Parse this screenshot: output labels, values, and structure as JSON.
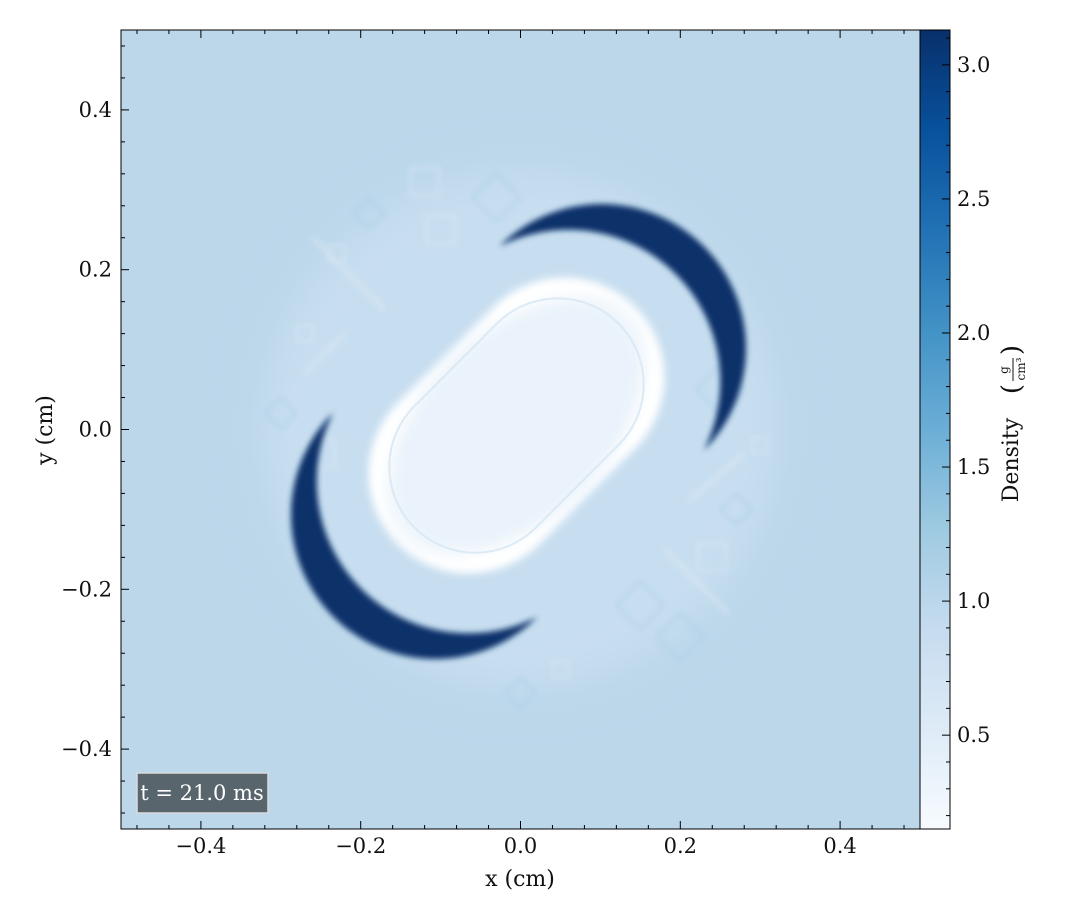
{
  "chart_data": {
    "type": "heatmap",
    "title": "",
    "xlabel": "x  (cm)",
    "ylabel": "y  (cm)",
    "xlim": [
      -0.5,
      0.5
    ],
    "ylim": [
      -0.5,
      0.5
    ],
    "x_ticks": [
      -0.4,
      -0.2,
      0.0,
      0.2,
      0.4
    ],
    "x_tick_labels": [
      "−0.4",
      "−0.2",
      "0.0",
      "0.2",
      "0.4"
    ],
    "y_ticks": [
      0.4,
      0.2,
      0.0,
      -0.2,
      -0.4
    ],
    "y_tick_labels": [
      "0.4",
      "0.2",
      "0.0",
      "−0.2",
      "−0.4"
    ],
    "colorbar": {
      "label": "Density",
      "unit_numerator": "g",
      "unit_denominator": "cm³",
      "range": [
        0.15,
        3.13
      ],
      "ticks": [
        0.5,
        1.0,
        1.5,
        2.0,
        2.5,
        3.0
      ],
      "tick_labels": [
        "0.5",
        "1.0",
        "1.5",
        "2.0",
        "2.5",
        "3.0"
      ],
      "colormap": "Blues"
    },
    "background_density": 1.2,
    "annotation": "t = 21.0 ms",
    "features": [
      {
        "name": "low-density core",
        "shape": "rotated rounded rectangle",
        "center": [
          -0.005,
          0.005
        ],
        "half_extents": [
          0.21,
          0.125
        ],
        "angle_deg": 45,
        "density": 0.2
      },
      {
        "name": "dense shell upper-right",
        "shape": "crescent",
        "center": [
          0.06,
          0.06
        ],
        "radius": 0.19,
        "density_peak": 3.1
      },
      {
        "name": "dense shell lower-left",
        "shape": "crescent",
        "center": [
          -0.065,
          -0.065
        ],
        "radius": 0.19,
        "density_peak": 3.1
      },
      {
        "name": "perturbed halo",
        "shape": "disk",
        "center": [
          0.0,
          0.0
        ],
        "radius": 0.37,
        "density_range": [
          1.0,
          1.3
        ]
      }
    ]
  },
  "colors": {
    "background": "#bcd7ea",
    "halo_light": "#c7def0",
    "halo_dark": "#a6cbe3",
    "core": "#eaf3fb",
    "core_edge": "#ffffff",
    "shell_dark": "#08306b",
    "shell_mid": "#2171b5",
    "annotation_bg": "#59656d",
    "annotation_text": "#ffffff",
    "colormap_stops": [
      "#f7fbff",
      "#deebf7",
      "#c6dbef",
      "#9ecae1",
      "#6baed6",
      "#4292c6",
      "#2171b5",
      "#08519c",
      "#08306b"
    ]
  }
}
